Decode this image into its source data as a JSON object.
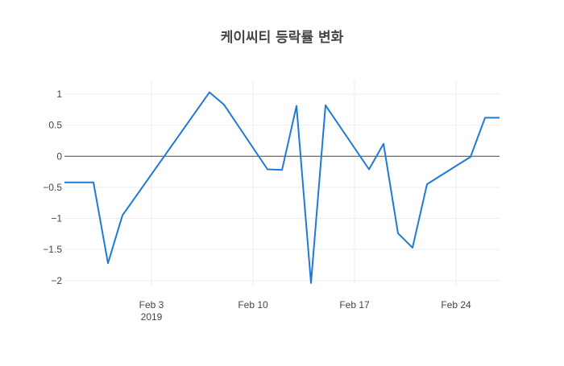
{
  "chart_data": {
    "type": "line",
    "title": "케이씨티 등락률 변화",
    "xlabel": "",
    "ylabel": "",
    "x": [
      "2019-01-28",
      "2019-01-29",
      "2019-01-30",
      "2019-01-31",
      "2019-02-01",
      "2019-02-07",
      "2019-02-08",
      "2019-02-11",
      "2019-02-12",
      "2019-02-13",
      "2019-02-14",
      "2019-02-15",
      "2019-02-18",
      "2019-02-19",
      "2019-02-20",
      "2019-02-21",
      "2019-02-22",
      "2019-02-25",
      "2019-02-26",
      "2019-02-27"
    ],
    "series": [
      {
        "values": [
          -0.42,
          -0.42,
          -0.42,
          -1.72,
          -0.95,
          1.03,
          0.83,
          -0.21,
          -0.22,
          0.81,
          -2.04,
          0.82,
          -0.21,
          0.2,
          -1.24,
          -1.47,
          -0.45,
          -0.01,
          0.62,
          0.62
        ],
        "color": "#1f7ad6"
      }
    ],
    "xlim": [
      "2019-01-28",
      "2019-02-27"
    ],
    "ylim": [
      -2.08,
      1.22
    ],
    "x_tick_labels": [
      {
        "date": "2019-02-03",
        "label": "Feb 3",
        "sub": "2019"
      },
      {
        "date": "2019-02-10",
        "label": "Feb 10",
        "sub": ""
      },
      {
        "date": "2019-02-17",
        "label": "Feb 17",
        "sub": ""
      },
      {
        "date": "2019-02-24",
        "label": "Feb 24",
        "sub": ""
      }
    ],
    "y_ticks": [
      1,
      0.5,
      0,
      -0.5,
      -1,
      -1.5,
      -2
    ],
    "y_tick_labels": [
      "1",
      "0.5",
      "0",
      "−0.5",
      "−1",
      "−1.5",
      "−2"
    ],
    "grid": true,
    "zero_line": true,
    "legend": "none"
  }
}
